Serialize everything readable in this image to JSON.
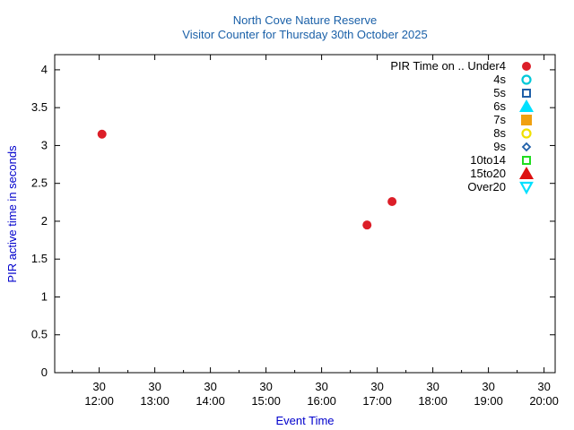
{
  "chart_data": {
    "type": "scatter",
    "title": "North Cove Nature Reserve",
    "subtitle": "Visitor Counter for Thursday 30th October 2025",
    "xlabel": "Event Time",
    "ylabel": "PIR active time in seconds",
    "xlim": [
      "11:12",
      "20:12"
    ],
    "ylim": [
      0,
      4.2
    ],
    "x_ticks": [
      {
        "top": "30",
        "bottom": "12:00",
        "value": "12:00"
      },
      {
        "top": "30",
        "bottom": "13:00",
        "value": "13:00"
      },
      {
        "top": "30",
        "bottom": "14:00",
        "value": "14:00"
      },
      {
        "top": "30",
        "bottom": "15:00",
        "value": "15:00"
      },
      {
        "top": "30",
        "bottom": "16:00",
        "value": "16:00"
      },
      {
        "top": "30",
        "bottom": "17:00",
        "value": "17:00"
      },
      {
        "top": "30",
        "bottom": "18:00",
        "value": "18:00"
      },
      {
        "top": "30",
        "bottom": "19:00",
        "value": "19:00"
      },
      {
        "top": "30",
        "bottom": "20:00",
        "value": "20:00"
      }
    ],
    "y_ticks": [
      0,
      0.5,
      1,
      1.5,
      2,
      2.5,
      3,
      3.5,
      4
    ],
    "y_tick_labels": [
      "0",
      "0.5",
      "1",
      "1.5",
      "2",
      "2.5",
      "3",
      "3.5",
      "4"
    ],
    "grid": false,
    "legend_position": "top-right",
    "series": [
      {
        "name": "PIR Time on .. Under4",
        "marker": "circle-filled",
        "color": "#dc1e28",
        "points": [
          {
            "x": "12:03",
            "y": 3.15
          },
          {
            "x": "16:49",
            "y": 1.95
          },
          {
            "x": "17:16",
            "y": 2.26
          }
        ]
      },
      {
        "name": "4s",
        "marker": "circle-open",
        "color": "#00c8d8",
        "points": []
      },
      {
        "name": "5s",
        "marker": "square-open",
        "color": "#1f5fa8",
        "points": []
      },
      {
        "name": "6s",
        "marker": "triangle-filled",
        "color": "#00e0ff",
        "points": []
      },
      {
        "name": "7s",
        "marker": "square-filled",
        "color": "#f0a010",
        "points": []
      },
      {
        "name": "8s",
        "marker": "circle-open",
        "color": "#f0e000",
        "points": []
      },
      {
        "name": "9s",
        "marker": "diamond-open",
        "color": "#1f5fa8",
        "points": []
      },
      {
        "name": "10to14",
        "marker": "square-open",
        "color": "#20dd20",
        "points": []
      },
      {
        "name": "15to20",
        "marker": "triangle-filled",
        "color": "#dd1010",
        "points": []
      },
      {
        "name": "Over20",
        "marker": "triangle-down-open",
        "color": "#00e0ff",
        "points": []
      }
    ]
  }
}
